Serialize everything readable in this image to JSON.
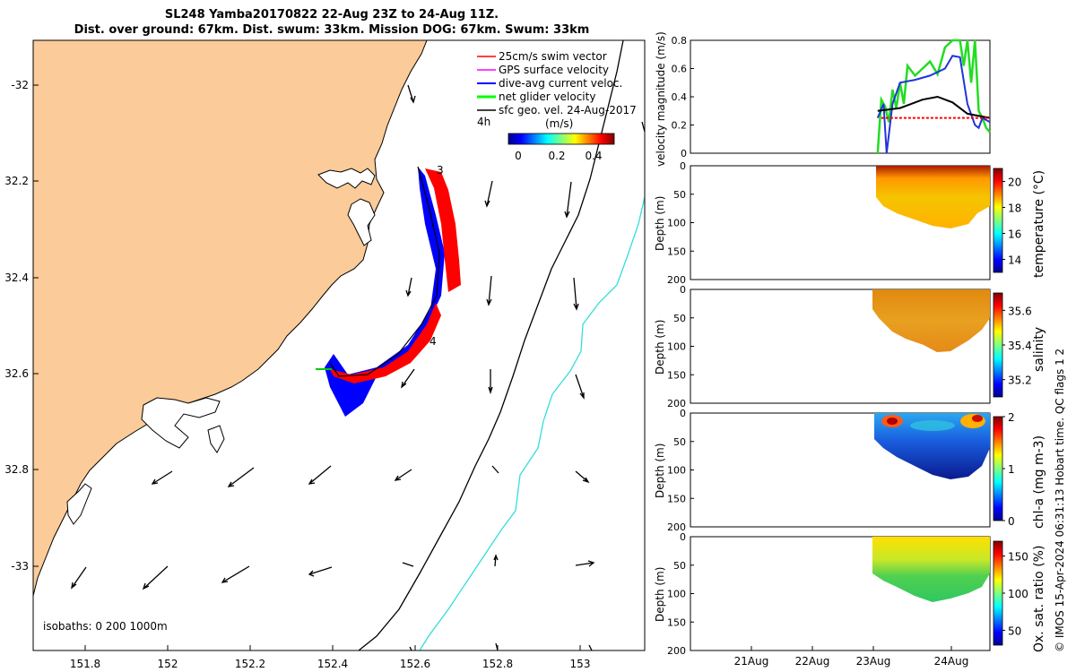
{
  "header": {
    "title_line1": "SL248 Yamba20170822 22-Aug 23Z to 24-Aug 11Z.",
    "title_line2": "Dist. over ground: 67km. Dist. swum: 33km. Mission DOG: 67km. Swum: 33km"
  },
  "map": {
    "lon_ticks": [
      "151.8",
      "152",
      "152.2",
      "152.4",
      "152.6",
      "152.8",
      "153"
    ],
    "lat_ticks": [
      "-32",
      "32.2",
      "32.4",
      "32.6",
      "32.8",
      "-33"
    ],
    "isobaths_label": "isobaths: 0   200  1000m",
    "time_label": "4h",
    "waypoint_labels": [
      "3",
      "4"
    ],
    "legend": [
      {
        "label": "25cm/s swim vector",
        "color": "#ff0000"
      },
      {
        "label": "GPS surface velocity",
        "color": "#ff00ff"
      },
      {
        "label": "dive-avg current veloc.",
        "color": "#0000ff"
      },
      {
        "label": "net glider velocity",
        "color": "#00ff00"
      },
      {
        "label": "sfc geo. vel. 24-Aug-2017",
        "color": "#000000"
      }
    ],
    "colorbar": {
      "title": "(m/s)",
      "ticks": [
        "0",
        "0.2",
        "0.4"
      ]
    },
    "colors": {
      "land": "#fbcb99",
      "isobath_200": "#000000",
      "isobath_1000": "#33dddd"
    }
  },
  "footer_side": "© IMOS 15-Apr-2024 06:31:13 Hobart time. QC flags 1  2",
  "chart_data": [
    {
      "type": "line",
      "title": "",
      "ylabel": "velocity magnitude (m/s)",
      "ylim": [
        0,
        0.8
      ],
      "yticks": [
        "0",
        "0.2",
        "0.4",
        "0.6",
        "0.8"
      ],
      "x_ticks": [
        "21Aug",
        "22Aug",
        "23Aug",
        "24Aug"
      ],
      "series": [
        {
          "name": "net glider velocity",
          "color": "#22dd22",
          "x": [
            23.0,
            23.05,
            23.1,
            23.15,
            23.2,
            23.25,
            23.3,
            23.35,
            23.4,
            23.5,
            23.6,
            23.7,
            23.8,
            23.9,
            24.0,
            24.1,
            24.15,
            24.2,
            24.25,
            24.3,
            24.35,
            24.4,
            24.45,
            24.5
          ],
          "y": [
            0.0,
            0.38,
            0.33,
            0.22,
            0.45,
            0.32,
            0.5,
            0.35,
            0.62,
            0.55,
            0.6,
            0.65,
            0.56,
            0.75,
            0.8,
            0.8,
            0.62,
            0.8,
            0.5,
            0.8,
            0.3,
            0.25,
            0.18,
            0.15
          ]
        },
        {
          "name": "dive-avg current veloc.",
          "color": "#2233dd",
          "x": [
            23.0,
            23.08,
            23.12,
            23.2,
            23.3,
            23.5,
            23.7,
            23.9,
            24.0,
            24.1,
            24.2,
            24.3,
            24.35,
            24.4,
            24.5
          ],
          "y": [
            0.25,
            0.35,
            0.0,
            0.35,
            0.5,
            0.52,
            0.55,
            0.6,
            0.69,
            0.68,
            0.35,
            0.2,
            0.18,
            0.25,
            0.22
          ]
        },
        {
          "name": "sfc geo. vel.",
          "color": "#000000",
          "x": [
            23.0,
            23.3,
            23.6,
            23.8,
            24.0,
            24.2,
            24.4,
            24.5
          ],
          "y": [
            0.3,
            0.32,
            0.38,
            0.4,
            0.36,
            0.28,
            0.26,
            0.25
          ]
        },
        {
          "name": "swim speed",
          "color": "#ff0000",
          "x": [
            23.05,
            24.5
          ],
          "y": [
            0.25,
            0.25
          ]
        }
      ]
    },
    {
      "type": "heatmap",
      "ylabel": "Depth (m)",
      "clabel": "temperature (°C)",
      "ylim": [
        200,
        0
      ],
      "yticks": [
        "0",
        "50",
        "100",
        "150",
        "200"
      ],
      "cticks": [
        "14",
        "16",
        "18",
        "20"
      ],
      "clim": [
        13,
        21
      ]
    },
    {
      "type": "heatmap",
      "ylabel": "Depth (m)",
      "clabel": "salinity",
      "ylim": [
        200,
        0
      ],
      "yticks": [
        "0",
        "50",
        "100",
        "150",
        "200"
      ],
      "cticks": [
        "35.2",
        "35.4",
        "35.6"
      ],
      "clim": [
        35.1,
        35.7
      ]
    },
    {
      "type": "heatmap",
      "ylabel": "Depth (m)",
      "clabel": "chl-a (mg m-3)",
      "ylim": [
        200,
        0
      ],
      "yticks": [
        "0",
        "50",
        "100",
        "150",
        "200"
      ],
      "cticks": [
        "0",
        "1",
        "2"
      ],
      "clim": [
        0,
        2
      ]
    },
    {
      "type": "heatmap",
      "ylabel": "Depth (m)",
      "clabel": "Ox. sat. ratio (%)",
      "ylim": [
        200,
        0
      ],
      "yticks": [
        "0",
        "50",
        "100",
        "150",
        "200"
      ],
      "cticks": [
        "50",
        "100",
        "150"
      ],
      "clim": [
        30,
        170
      ]
    }
  ]
}
